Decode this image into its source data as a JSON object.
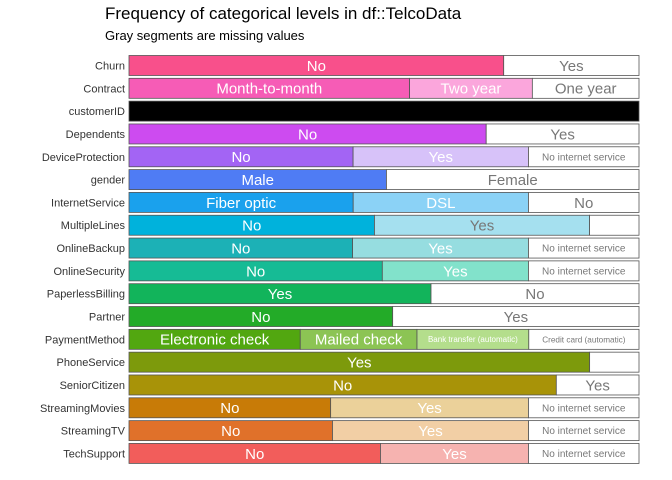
{
  "chart_data": {
    "type": "bar",
    "orientation": "horizontal",
    "stacked": "proportional",
    "title": "Frequency of categorical levels in df::TelcoData",
    "subtitle": "Gray segments are missing values",
    "xlabel": "",
    "ylabel": "",
    "grid": false,
    "legend": "none",
    "rows": [
      {
        "name": "Churn",
        "segments": [
          {
            "label": "No",
            "value": 0.7347,
            "color": "#f8508b",
            "text_color": "#ffffff"
          },
          {
            "label": "Yes",
            "value": 0.2653,
            "color": "#ffffff",
            "text_color": "#777777"
          }
        ]
      },
      {
        "name": "Contract",
        "segments": [
          {
            "label": "Month-to-month",
            "value": 0.5502,
            "color": "#f65cb6",
            "text_color": "#ffffff"
          },
          {
            "label": "Two year",
            "value": 0.2407,
            "color": "#fba6dc",
            "text_color": "#ffffff"
          },
          {
            "label": "One year",
            "value": 0.2091,
            "color": "#ffffff",
            "text_color": "#777777"
          }
        ]
      },
      {
        "name": "customerID",
        "segments": [
          {
            "label": "",
            "value": 1.0,
            "color": "#000000",
            "text_color": "#ffffff"
          }
        ]
      },
      {
        "name": "Dependents",
        "segments": [
          {
            "label": "No",
            "value": 0.7004,
            "color": "#cd4bf0",
            "text_color": "#ffffff"
          },
          {
            "label": "Yes",
            "value": 0.2996,
            "color": "#ffffff",
            "text_color": "#777777"
          }
        ]
      },
      {
        "name": "DeviceProtection",
        "segments": [
          {
            "label": "No",
            "value": 0.4394,
            "color": "#a364f4",
            "text_color": "#ffffff"
          },
          {
            "label": "Yes",
            "value": 0.3439,
            "color": "#d7c2f9",
            "text_color": "#ffffff"
          },
          {
            "label": "No internet service",
            "value": 0.2167,
            "color": "#ffffff",
            "text_color": "#777777"
          }
        ]
      },
      {
        "name": "gender",
        "segments": [
          {
            "label": "Male",
            "value": 0.5048,
            "color": "#4f7cf4",
            "text_color": "#ffffff"
          },
          {
            "label": "Female",
            "value": 0.4952,
            "color": "#ffffff",
            "text_color": "#777777"
          }
        ]
      },
      {
        "name": "InternetService",
        "segments": [
          {
            "label": "Fiber optic",
            "value": 0.4396,
            "color": "#1aa1ed",
            "text_color": "#ffffff"
          },
          {
            "label": "DSL",
            "value": 0.3437,
            "color": "#8bd2f6",
            "text_color": "#ffffff"
          },
          {
            "label": "No",
            "value": 0.2167,
            "color": "#ffffff",
            "text_color": "#777777"
          }
        ]
      },
      {
        "name": "MultipleLines",
        "segments": [
          {
            "label": "No",
            "value": 0.4813,
            "color": "#00b2dc",
            "text_color": "#ffffff"
          },
          {
            "label": "Yes",
            "value": 0.4218,
            "color": "#a5e0ef",
            "text_color": "#777777"
          },
          {
            "label": "",
            "value": 0.0969,
            "color": "#ffffff",
            "text_color": "#777777"
          }
        ]
      },
      {
        "name": "OnlineBackup",
        "segments": [
          {
            "label": "No",
            "value": 0.4384,
            "color": "#1cb1b6",
            "text_color": "#ffffff"
          },
          {
            "label": "Yes",
            "value": 0.3449,
            "color": "#96dde0",
            "text_color": "#ffffff"
          },
          {
            "label": "No internet service",
            "value": 0.2167,
            "color": "#ffffff",
            "text_color": "#777777"
          }
        ]
      },
      {
        "name": "OnlineSecurity",
        "segments": [
          {
            "label": "No",
            "value": 0.4967,
            "color": "#16bb95",
            "text_color": "#ffffff"
          },
          {
            "label": "Yes",
            "value": 0.2866,
            "color": "#82e2cb",
            "text_color": "#ffffff"
          },
          {
            "label": "No internet service",
            "value": 0.2167,
            "color": "#ffffff",
            "text_color": "#777777"
          }
        ]
      },
      {
        "name": "PaperlessBilling",
        "segments": [
          {
            "label": "Yes",
            "value": 0.5922,
            "color": "#12b45b",
            "text_color": "#ffffff"
          },
          {
            "label": "No",
            "value": 0.4078,
            "color": "#ffffff",
            "text_color": "#777777"
          }
        ]
      },
      {
        "name": "Partner",
        "segments": [
          {
            "label": "No",
            "value": 0.517,
            "color": "#23ab28",
            "text_color": "#ffffff"
          },
          {
            "label": "Yes",
            "value": 0.483,
            "color": "#ffffff",
            "text_color": "#777777"
          }
        ]
      },
      {
        "name": "PaymentMethod",
        "segments": [
          {
            "label": "Electronic check",
            "value": 0.3358,
            "color": "#52a710",
            "text_color": "#ffffff"
          },
          {
            "label": "Mailed check",
            "value": 0.2289,
            "color": "#8cc454",
            "text_color": "#ffffff"
          },
          {
            "label": "Bank transfer (automatic)",
            "value": 0.2192,
            "color": "#b4de8c",
            "text_color": "#ffffff"
          },
          {
            "label": "Credit card (automatic)",
            "value": 0.2161,
            "color": "#ffffff",
            "text_color": "#777777"
          }
        ]
      },
      {
        "name": "PhoneService",
        "segments": [
          {
            "label": "Yes",
            "value": 0.9032,
            "color": "#7d9a0c",
            "text_color": "#ffffff"
          },
          {
            "label": "",
            "value": 0.0968,
            "color": "#ffffff",
            "text_color": "#777777"
          }
        ]
      },
      {
        "name": "SeniorCitizen",
        "segments": [
          {
            "label": "No",
            "value": 0.8379,
            "color": "#a89308",
            "text_color": "#ffffff"
          },
          {
            "label": "Yes",
            "value": 0.1621,
            "color": "#ffffff",
            "text_color": "#777777"
          }
        ]
      },
      {
        "name": "StreamingMovies",
        "segments": [
          {
            "label": "No",
            "value": 0.3954,
            "color": "#c87b07",
            "text_color": "#ffffff"
          },
          {
            "label": "Yes",
            "value": 0.3879,
            "color": "#ebd19a",
            "text_color": "#ffffff"
          },
          {
            "label": "No internet service",
            "value": 0.2167,
            "color": "#ffffff",
            "text_color": "#777777"
          }
        ]
      },
      {
        "name": "StreamingTV",
        "segments": [
          {
            "label": "No",
            "value": 0.399,
            "color": "#e0712a",
            "text_color": "#ffffff"
          },
          {
            "label": "Yes",
            "value": 0.3844,
            "color": "#f2cfa5",
            "text_color": "#ffffff"
          },
          {
            "label": "No internet service",
            "value": 0.2167,
            "color": "#ffffff",
            "text_color": "#777777"
          }
        ]
      },
      {
        "name": "TechSupport",
        "segments": [
          {
            "label": "No",
            "value": 0.4931,
            "color": "#f25d5b",
            "text_color": "#ffffff"
          },
          {
            "label": "Yes",
            "value": 0.2902,
            "color": "#f6b3b0",
            "text_color": "#ffffff"
          },
          {
            "label": "No internet service",
            "value": 0.2167,
            "color": "#ffffff",
            "text_color": "#777777"
          }
        ]
      }
    ]
  }
}
